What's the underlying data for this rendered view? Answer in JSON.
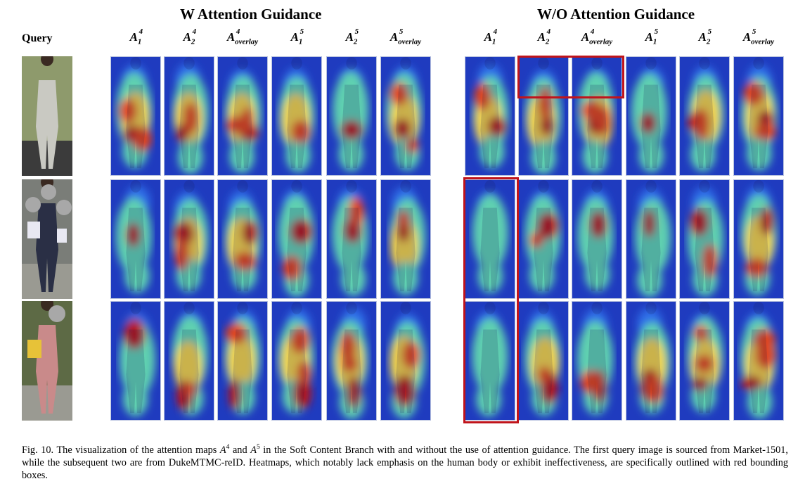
{
  "figure": {
    "group_left_title": "W Attention Guidance",
    "group_right_title": "W/O Attention Guidance",
    "query_label": "Query",
    "columns": [
      {
        "base": "A",
        "sub": "1",
        "sup": "4"
      },
      {
        "base": "A",
        "sub": "2",
        "sup": "4"
      },
      {
        "base": "A",
        "sub": "overlay",
        "sup": "4"
      },
      {
        "base": "A",
        "sub": "1",
        "sup": "5"
      },
      {
        "base": "A",
        "sub": "2",
        "sup": "5"
      },
      {
        "base": "A",
        "sub": "overlay",
        "sup": "5"
      }
    ],
    "heatmap_colors": {
      "background": "#1f3bbf",
      "low": "#2d6ee8",
      "mid": "#5fd0b0",
      "warm": "#f2d34a",
      "hot": "#e0451f",
      "peak": "#b3161b"
    },
    "outline_color": "#c0141b"
  },
  "caption": {
    "prefix": "Fig. 10.  The visualization of the attention maps ",
    "sym1": "A",
    "sup1": "4",
    "and": " and ",
    "sym2": "A",
    "sup2": "5",
    "rest": " in the Soft Content Branch with and without the use of attention guidance. The first query image is sourced from Market-1501, while the subsequent two are from DukeMTMC-reID. Heatmaps, which notably lack emphasis on the human body or exhibit ineffectiveness, are specifically outlined with red bounding boxes."
  }
}
